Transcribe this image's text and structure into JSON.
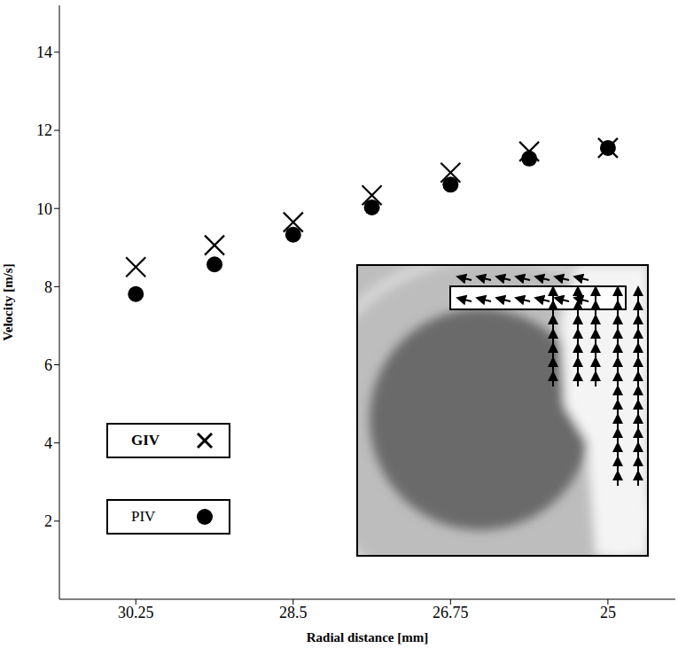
{
  "chart_data": {
    "type": "scatter",
    "xlabel": "Radial distance [mm]",
    "ylabel": "Velocity [m/s]",
    "x": [
      30.25,
      29.375,
      28.5,
      27.625,
      26.75,
      25.875,
      25
    ],
    "xlim": [
      31.1,
      24.25
    ],
    "xticks": [
      30.25,
      28.5,
      26.75,
      25
    ],
    "ylim": [
      0,
      15.2
    ],
    "yticks": [
      2,
      4,
      6,
      8,
      10,
      12,
      14
    ],
    "grid": false,
    "legend": "lower left",
    "series": [
      {
        "name": "GIV",
        "color": "#000000",
        "marker": "x",
        "values": [
          8.5,
          9.06,
          9.65,
          10.34,
          10.92,
          11.46,
          11.55
        ]
      },
      {
        "name": "PIV",
        "color": "#000000",
        "marker": "o",
        "values": [
          7.81,
          8.57,
          9.33,
          10.03,
          10.61,
          11.28,
          11.55
        ]
      }
    ]
  }
}
